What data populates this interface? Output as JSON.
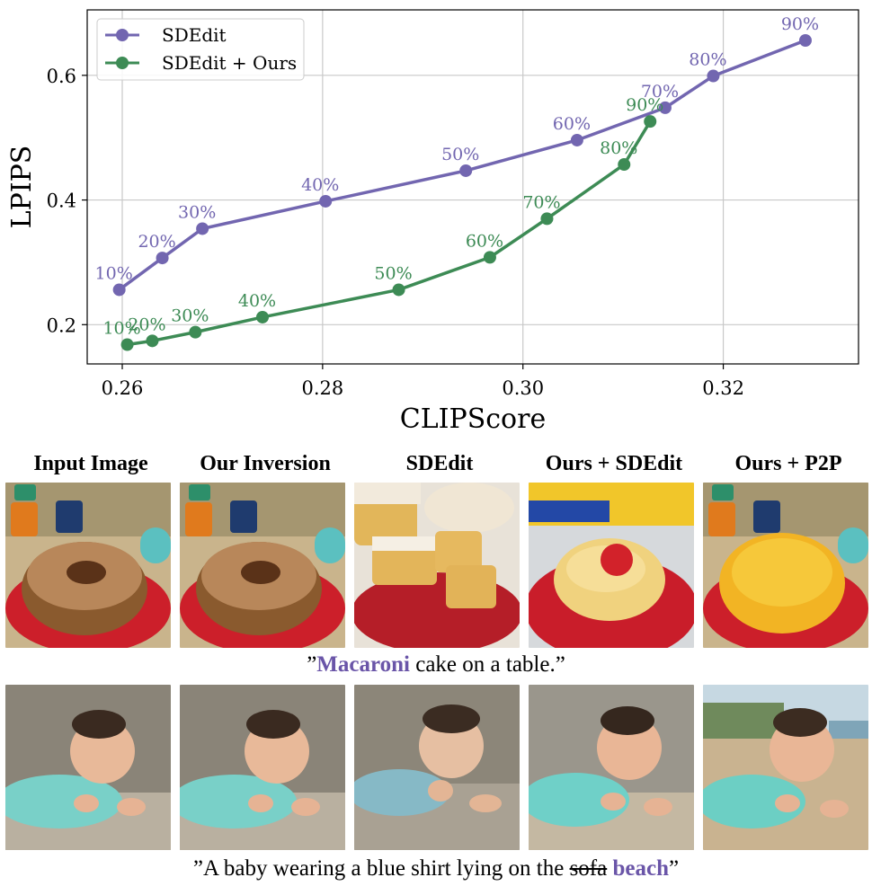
{
  "chart_data": {
    "type": "line",
    "xlabel": "CLIPScore",
    "ylabel": "LPIPS",
    "xlim": [
      0.2565,
      0.3335
    ],
    "ylim": [
      0.137,
      0.705
    ],
    "xticks": [
      0.26,
      0.28,
      0.3,
      0.32
    ],
    "xtick_labels": [
      "0.26",
      "0.28",
      "0.30",
      "0.32"
    ],
    "yticks": [
      0.2,
      0.4,
      0.6
    ],
    "ytick_labels": [
      "0.2",
      "0.4",
      "0.6"
    ],
    "grid": true,
    "legend_position": "top-left",
    "series": [
      {
        "name": "SDEdit",
        "color": "#7266b0",
        "points": [
          {
            "x": 0.2597,
            "y": 0.256,
            "label": "10%"
          },
          {
            "x": 0.264,
            "y": 0.307,
            "label": "20%"
          },
          {
            "x": 0.268,
            "y": 0.354,
            "label": "30%"
          },
          {
            "x": 0.2803,
            "y": 0.398,
            "label": "40%"
          },
          {
            "x": 0.2943,
            "y": 0.447,
            "label": "50%"
          },
          {
            "x": 0.3054,
            "y": 0.496,
            "label": "60%"
          },
          {
            "x": 0.3142,
            "y": 0.548,
            "label": "70%"
          },
          {
            "x": 0.319,
            "y": 0.599,
            "label": "80%"
          },
          {
            "x": 0.3282,
            "y": 0.656,
            "label": "90%"
          }
        ]
      },
      {
        "name": "SDEdit + Ours",
        "color": "#3d8b55",
        "points": [
          {
            "x": 0.2605,
            "y": 0.168,
            "label": "10%"
          },
          {
            "x": 0.263,
            "y": 0.174,
            "label": "20%"
          },
          {
            "x": 0.2673,
            "y": 0.188,
            "label": "30%"
          },
          {
            "x": 0.274,
            "y": 0.212,
            "label": "40%"
          },
          {
            "x": 0.2876,
            "y": 0.256,
            "label": "50%"
          },
          {
            "x": 0.2967,
            "y": 0.308,
            "label": "60%"
          },
          {
            "x": 0.3024,
            "y": 0.37,
            "label": "70%"
          },
          {
            "x": 0.3101,
            "y": 0.457,
            "label": "80%"
          },
          {
            "x": 0.3127,
            "y": 0.526,
            "label": "90%"
          }
        ]
      }
    ]
  },
  "columns": [
    "Input Image",
    "Our Inversion",
    "SDEdit",
    "Ours + SDEdit",
    "Ours + P2P"
  ],
  "caption1": {
    "open": "”",
    "highlight": "Macaroni",
    "rest": " cake on a table.”"
  },
  "caption2": {
    "open": "”A baby wearing a blue shirt lying on the ",
    "strike": "sofa",
    "space": " ",
    "highlight": "beach",
    "close": "”"
  },
  "colors": {
    "purple": "#7266b0",
    "green": "#3d8b55",
    "highlight": "#6a55a8"
  }
}
